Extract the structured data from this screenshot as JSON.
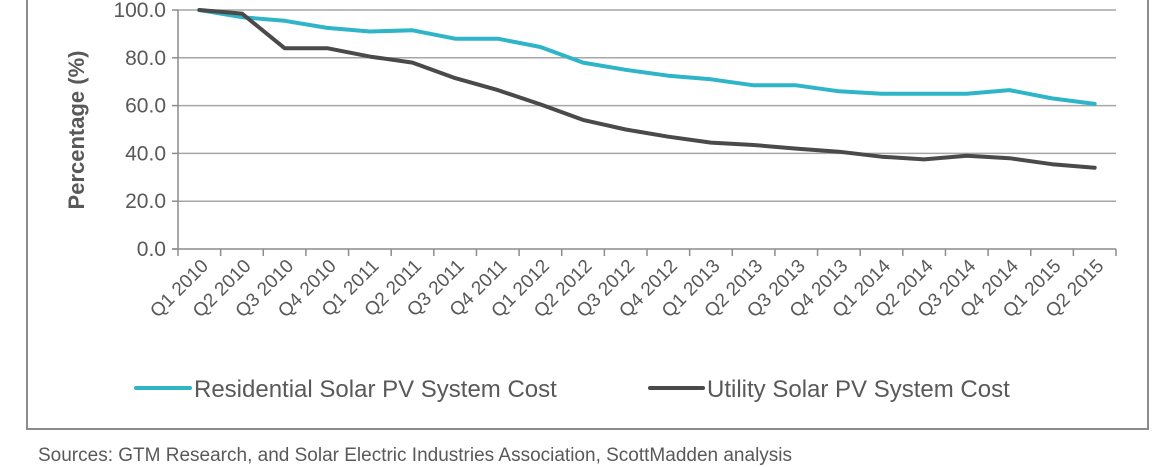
{
  "chart_data": {
    "type": "line",
    "title": "",
    "xlabel": "",
    "ylabel": "Percentage (%)",
    "ylim": [
      0,
      100
    ],
    "yticks": [
      "0.0",
      "20.0",
      "40.0",
      "60.0",
      "80.0",
      "100.0"
    ],
    "ytick_values": [
      0,
      20,
      40,
      60,
      80,
      100
    ],
    "grid": true,
    "legend_position": "bottom",
    "categories": [
      "Q1 2010",
      "Q2 2010",
      "Q3 2010",
      "Q4 2010",
      "Q1 2011",
      "Q2 2011",
      "Q3 2011",
      "Q4 2011",
      "Q1 2012",
      "Q2 2012",
      "Q3 2012",
      "Q4 2012",
      "Q1 2013",
      "Q2 2013",
      "Q3 2013",
      "Q4 2013",
      "Q1 2014",
      "Q2 2014",
      "Q3 2014",
      "Q4 2014",
      "Q1 2015",
      "Q2 2015"
    ],
    "series": [
      {
        "name": "Residential Solar PV System Cost",
        "color": "#2fb5c8",
        "values": [
          100.0,
          97.0,
          95.5,
          92.5,
          91.0,
          91.5,
          88.0,
          88.0,
          84.5,
          78.0,
          75.0,
          72.5,
          71.0,
          68.5,
          68.5,
          66.0,
          65.0,
          65.0,
          65.0,
          66.5,
          63.0,
          60.7
        ]
      },
      {
        "name": "Utility Solar PV System Cost",
        "color": "#4a4a4a",
        "values": [
          100.0,
          98.5,
          84.0,
          84.0,
          80.5,
          78.0,
          71.5,
          66.5,
          60.5,
          54.0,
          50.0,
          47.0,
          44.5,
          43.5,
          42.0,
          40.7,
          38.6,
          37.5,
          39.0,
          38.0,
          35.5,
          34.0
        ]
      }
    ]
  },
  "source_note": "Sources: GTM Research, and Solar Electric Industries Association, ScottMadden analysis"
}
